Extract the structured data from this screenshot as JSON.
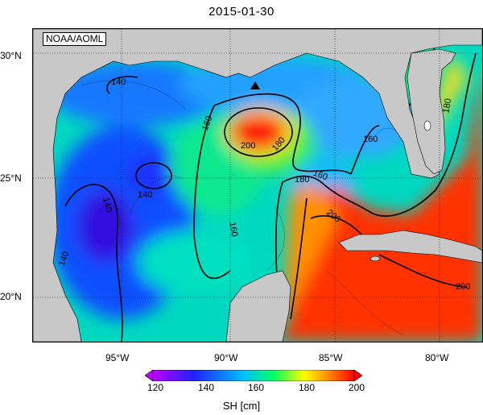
{
  "title": "2015-01-30",
  "credit": "NOAA/AOML",
  "lon_labels": [
    "95°W",
    "90°W",
    "85°W",
    "80°W"
  ],
  "lat_labels": [
    "30°N",
    "25°N",
    "20°N"
  ],
  "contour_labels": [
    "140",
    "140",
    "140",
    "140",
    "160",
    "160",
    "160",
    "160",
    "180",
    "180",
    "180",
    "200",
    "200",
    "200"
  ],
  "colorbar": {
    "ticks": [
      "120",
      "140",
      "160",
      "180",
      "200"
    ],
    "range": [
      120,
      200
    ],
    "units": "SH [cm]",
    "colors": [
      "#c000ff",
      "#2020ff",
      "#00c0ff",
      "#00ff60",
      "#ffff00",
      "#ff8000",
      "#ff0000"
    ]
  },
  "marker": "triangle-marker"
}
